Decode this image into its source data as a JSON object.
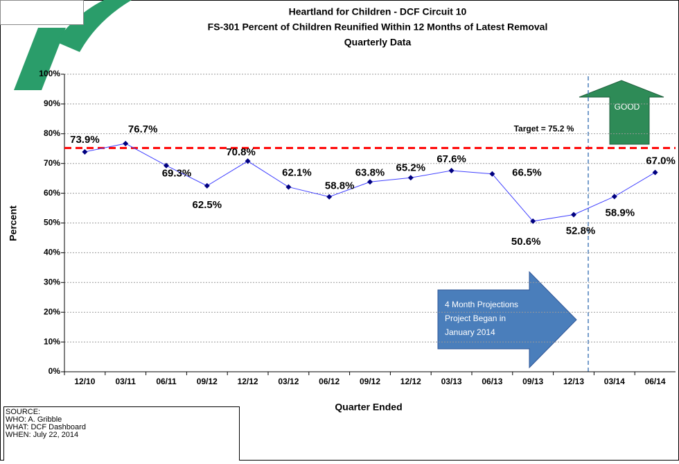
{
  "chart_data": {
    "type": "line",
    "title": [
      "Heartland for Children - DCF Circuit 10",
      "FS-301 Percent of Children Reunified Within 12 Months of Latest Removal",
      "Quarterly Data"
    ],
    "x_label": "Quarter Ended",
    "y_label": "Percent",
    "categories": [
      "12/10",
      "03/11",
      "06/11",
      "09/12",
      "12/12",
      "03/12",
      "06/12",
      "09/12",
      "12/12",
      "03/13",
      "06/13",
      "09/13",
      "12/13",
      "03/14",
      "06/14"
    ],
    "series": [
      {
        "color": "#000080",
        "values": [
          73.9,
          76.7,
          69.3,
          62.5,
          70.8,
          62.1,
          58.8,
          63.8,
          65.2,
          67.6,
          66.5,
          50.6,
          52.8,
          58.9,
          67.0
        ],
        "value_labels": [
          "73.9%",
          "76.7%",
          "69.3%",
          "62.5%",
          "70.8%",
          "62.1%",
          "58.8%",
          "63.8%",
          "65.2%",
          "67.6%",
          "66.5%",
          "50.6%",
          "52.8%",
          "58.9%",
          "67.0%"
        ]
      }
    ],
    "ylim": [
      0,
      100
    ],
    "yticks": [
      {
        "value": 0,
        "label": "0%"
      },
      {
        "value": 10,
        "label": "10%"
      },
      {
        "value": 20,
        "label": "20%"
      },
      {
        "value": 30,
        "label": "30%"
      },
      {
        "value": 40,
        "label": "40%"
      },
      {
        "value": 50,
        "label": "50%"
      },
      {
        "value": 60,
        "label": "60%"
      },
      {
        "value": 70,
        "label": "70%"
      },
      {
        "value": 80,
        "label": "80%"
      },
      {
        "value": 90,
        "label": "90%"
      },
      {
        "value": 100,
        "label": "100%"
      }
    ],
    "grid": true,
    "target": {
      "value": 75.2,
      "label": "Target = 75.2 %",
      "color": "#ff0000"
    },
    "good_label": "GOOD",
    "projection_note": [
      "4 Month Projections",
      "Project Began in",
      "January 2014"
    ],
    "source": [
      "SOURCE:",
      "WHO:  A. Gribble",
      "WHAT:  DCF Dashboard",
      "WHEN: July 22, 2014"
    ]
  }
}
